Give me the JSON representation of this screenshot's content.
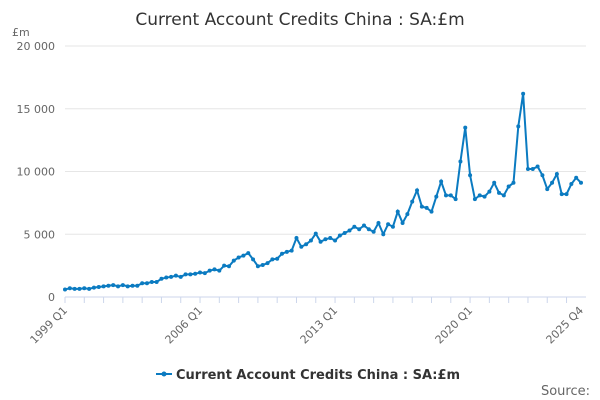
{
  "chart_data": {
    "type": "line",
    "title": "Current Account Credits China : SA:£m",
    "ylabel": "£m",
    "ylim": [
      0,
      20000
    ],
    "yticks": [
      0,
      5000,
      10000,
      15000,
      20000
    ],
    "ytick_labels": [
      "0",
      "5 000",
      "10 000",
      "15 000",
      "20 000"
    ],
    "xtick_labels": [
      "1999 Q1",
      "2006 Q1",
      "2013 Q1",
      "2020 Q1",
      "2025 Q4"
    ],
    "grid": true,
    "legend_placement": "bottom",
    "color": "#0b7bc1",
    "source_label": "Source:",
    "x_start": "1999 Q1",
    "x_end": "2025 Q4",
    "series": [
      {
        "name": "Current Account Credits China : SA:£m",
        "values": [
          600,
          700,
          650,
          650,
          700,
          650,
          750,
          800,
          850,
          900,
          950,
          850,
          950,
          850,
          900,
          900,
          1100,
          1100,
          1200,
          1200,
          1450,
          1550,
          1600,
          1700,
          1600,
          1800,
          1800,
          1850,
          1950,
          1900,
          2100,
          2200,
          2100,
          2500,
          2450,
          2900,
          3150,
          3300,
          3500,
          3000,
          2450,
          2550,
          2700,
          3000,
          3050,
          3450,
          3600,
          3700,
          4700,
          4000,
          4200,
          4500,
          5050,
          4400,
          4600,
          4700,
          4500,
          4900,
          5100,
          5300,
          5600,
          5400,
          5700,
          5400,
          5200,
          5900,
          5000,
          5800,
          5600,
          6800,
          5900,
          6600,
          7600,
          8500,
          7200,
          7100,
          6800,
          8000,
          9200,
          8100,
          8100,
          7800,
          10800,
          13500,
          9700,
          7800,
          8100,
          8000,
          8400,
          9100,
          8300,
          8100,
          8800,
          9100,
          13600,
          16200,
          10200,
          10200,
          10400,
          9700,
          8600,
          9100,
          9800,
          8200,
          8200,
          9000,
          9500,
          9100
        ]
      }
    ]
  }
}
